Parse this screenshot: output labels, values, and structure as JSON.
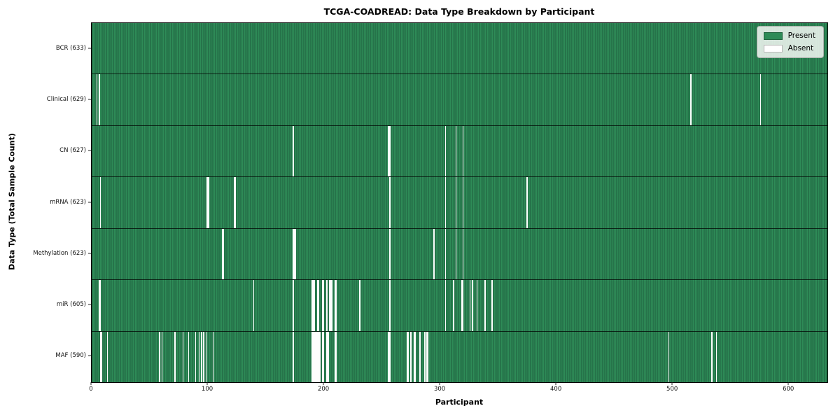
{
  "title": "TCGA-COADREAD: Data Type Breakdown by Participant",
  "xlabel": "Participant",
  "ylabel": "Data Type (Total Sample Count)",
  "legend": {
    "present_label": "Present",
    "absent_label": "Absent",
    "position": "upper right"
  },
  "colors": {
    "present": "#2e8b57",
    "present_edge": "#1d5e3c",
    "absent": "#fdfdfd",
    "row_divider": "#1a1a1a",
    "plot_border": "#000000",
    "legend_bg": "#f4f6f2",
    "legend_border": "#aab0aa"
  },
  "chart_data": {
    "type": "heatmap",
    "title": "TCGA-COADREAD: Data Type Breakdown by Participant",
    "xlabel": "Participant",
    "ylabel": "Data Type (Total Sample Count)",
    "legend": [
      "Present",
      "Absent"
    ],
    "legend_position": "upper right",
    "grid": false,
    "n_participants": 633,
    "xlim": [
      0,
      633
    ],
    "x_ticks": [
      0,
      100,
      200,
      300,
      400,
      500,
      600
    ],
    "value_encoding": {
      "present": "green cell",
      "absent": "white cell"
    },
    "rows": [
      {
        "data_type": "BCR",
        "label": "BCR (633)",
        "sample_count": 633,
        "absent_participants": []
      },
      {
        "data_type": "Clinical",
        "label": "Clinical (629)",
        "sample_count": 629,
        "absent_participants": [
          4,
          6,
          515,
          575
        ]
      },
      {
        "data_type": "CN",
        "label": "CN (627)",
        "sample_count": 627,
        "absent_participants": [
          173,
          255,
          256,
          304,
          313,
          319
        ]
      },
      {
        "data_type": "mRNA",
        "label": "mRNA (623)",
        "sample_count": 623,
        "absent_participants": [
          7,
          99,
          100,
          122,
          123,
          256,
          304,
          313,
          319,
          374
        ]
      },
      {
        "data_type": "Methylation",
        "label": "Methylation (623)",
        "sample_count": 623,
        "absent_participants": [
          112,
          113,
          173,
          174,
          175,
          256,
          294,
          304,
          313,
          319
        ]
      },
      {
        "data_type": "miR",
        "label": "miR (605)",
        "sample_count": 605,
        "absent_participants": [
          6,
          7,
          139,
          173,
          189,
          190,
          191,
          194,
          195,
          198,
          199,
          202,
          204,
          205,
          206,
          209,
          210,
          230,
          256,
          304,
          311,
          318,
          319,
          325,
          327,
          331,
          338,
          344
        ]
      },
      {
        "data_type": "MAF",
        "label": "MAF (590)",
        "sample_count": 590,
        "absent_participants": [
          7,
          8,
          13,
          58,
          60,
          71,
          78,
          83,
          89,
          92,
          94,
          96,
          98,
          104,
          173,
          189,
          190,
          191,
          192,
          193,
          194,
          195,
          196,
          198,
          199,
          202,
          203,
          209,
          210,
          255,
          256,
          271,
          272,
          274,
          277,
          278,
          282,
          286,
          288,
          289,
          496,
          533,
          537
        ]
      }
    ]
  }
}
